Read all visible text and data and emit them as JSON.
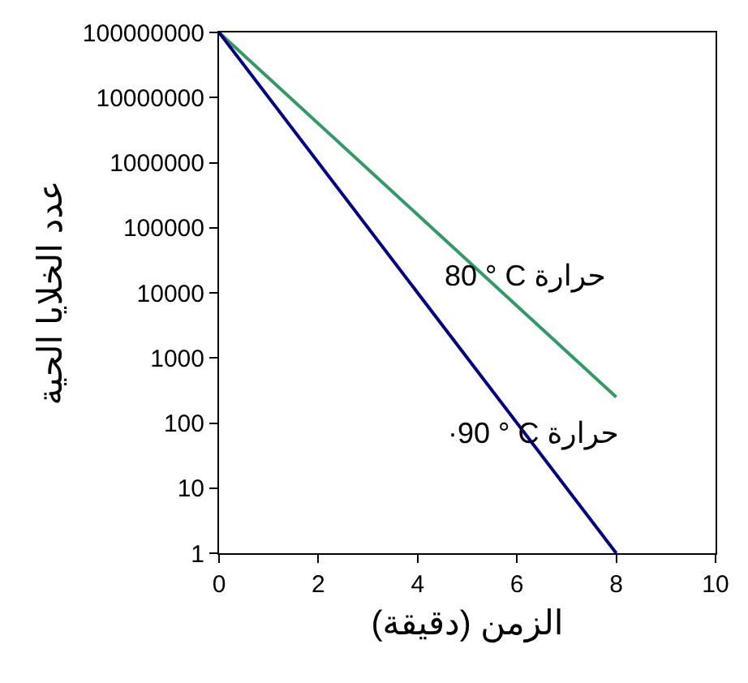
{
  "chart_data": {
    "type": "line",
    "xlabel": "الزمن (دقيقة)",
    "ylabel": "عدد الخلايا الحية",
    "x": [
      0,
      8
    ],
    "log": "y",
    "xlim": [
      0,
      10
    ],
    "xticks": [
      0,
      2,
      4,
      6,
      8,
      10
    ],
    "ylim": [
      1,
      100000000
    ],
    "yticks": [
      1,
      10,
      100,
      1000,
      10000,
      100000,
      1000000,
      10000000,
      100000000
    ],
    "grid": false,
    "marker": "none",
    "line_style": "solid",
    "series": [
      {
        "name": "80 ° C حرارة",
        "color": "#339966",
        "values": [
          100000000,
          250
        ]
      },
      {
        "name": "·90 ° C حرارة",
        "color": "#000080",
        "values": [
          100000000,
          1
        ]
      }
    ]
  }
}
